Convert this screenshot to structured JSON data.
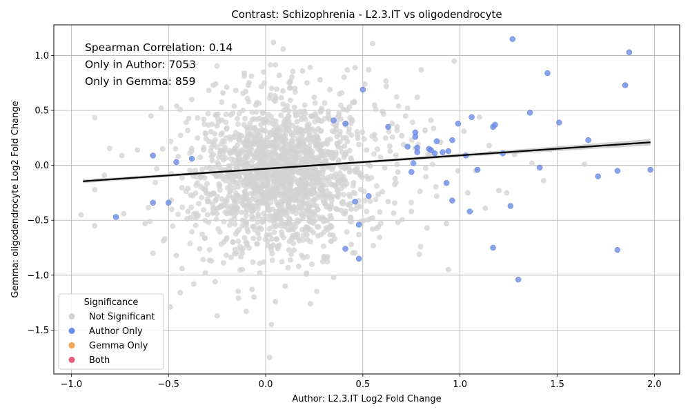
{
  "chart_data": {
    "type": "scatter",
    "title": "Contrast: Schizophrenia - L2.3.IT vs oligodendrocyte",
    "xlabel": "Author: L2.3.IT Log2 Fold Change",
    "ylabel": "Gemma: oligodendrocyte Log2 Fold Change",
    "xlim": [
      -1.09,
      2.13
    ],
    "ylim": [
      -1.9,
      1.28
    ],
    "xticks": [
      -1.0,
      -0.5,
      0.0,
      0.5,
      1.0,
      1.5,
      2.0
    ],
    "xtick_labels": [
      "−1.0",
      "−0.5",
      "0.0",
      "0.5",
      "1.0",
      "1.5",
      "2.0"
    ],
    "yticks": [
      -1.5,
      -1.0,
      -0.5,
      0.0,
      0.5,
      1.0
    ],
    "ytick_labels": [
      "−1.5",
      "−1.0",
      "−0.5",
      "0.0",
      "0.5",
      "1.0"
    ],
    "grid": true,
    "annotations": [
      "Spearman Correlation: 0.14",
      "Only in Author: 7053",
      "Only in Gemma: 859"
    ],
    "legend": {
      "title": "Significance",
      "placement": "bottom-left",
      "entries": [
        {
          "label": "Not Significant",
          "color": "#d3d3d3"
        },
        {
          "label": "Author Only",
          "color": "#6a8ce6"
        },
        {
          "label": "Gemma Only",
          "color": "#f5a455"
        },
        {
          "label": "Both",
          "color": "#e35a7a"
        }
      ]
    },
    "regression": {
      "x": [
        -0.94,
        1.98
      ],
      "y": [
        -0.145,
        0.21
      ],
      "color": "#000000"
    },
    "series": [
      {
        "name": "Not Significant",
        "color": "#d3d3d3",
        "points": [
          [
            -0.95,
            -0.45
          ],
          [
            -0.88,
            -0.55
          ],
          [
            -0.83,
            -0.09
          ],
          [
            -0.74,
            0.09
          ],
          [
            -0.73,
            -0.44
          ],
          [
            -0.66,
            0.14
          ],
          [
            -0.62,
            -0.53
          ],
          [
            -0.59,
            0.45
          ],
          [
            -0.58,
            -0.8
          ],
          [
            -0.53,
            0.15
          ],
          [
            -0.52,
            -0.67
          ],
          [
            -0.49,
            -1.29
          ],
          [
            -0.46,
            -0.82
          ],
          [
            -0.44,
            -1.16
          ],
          [
            -0.43,
            -0.94
          ],
          [
            -0.4,
            -0.42
          ],
          [
            -0.38,
            0.6
          ],
          [
            -0.37,
            -1.08
          ],
          [
            -0.34,
            -0.76
          ],
          [
            -0.31,
            -0.98
          ],
          [
            -0.28,
            -0.87
          ],
          [
            -0.27,
            0.73
          ],
          [
            -0.26,
            -1.06
          ],
          [
            -0.25,
            -1.37
          ],
          [
            -0.22,
            0.66
          ],
          [
            -0.2,
            -0.66
          ],
          [
            -0.18,
            0.46
          ],
          [
            -0.15,
            -0.8
          ],
          [
            -0.14,
            -1.21
          ],
          [
            -0.12,
            -0.95
          ],
          [
            -0.11,
            0.84
          ],
          [
            -0.1,
            -1.33
          ],
          [
            -0.09,
            0.73
          ],
          [
            -0.07,
            -1.13
          ],
          [
            -0.06,
            -1.2
          ],
          [
            -0.05,
            0.55
          ],
          [
            -0.03,
            -0.98
          ],
          [
            -0.01,
            -0.88
          ],
          [
            -0.01,
            0.85
          ],
          [
            0.02,
            -1.75
          ],
          [
            0.03,
            -1.45
          ],
          [
            0.04,
            1.12
          ],
          [
            0.05,
            -1.24
          ],
          [
            0.07,
            0.82
          ],
          [
            0.09,
            1.06
          ],
          [
            0.1,
            -1.1
          ],
          [
            0.12,
            -0.77
          ],
          [
            0.15,
            0.7
          ],
          [
            0.17,
            -0.92
          ],
          [
            0.19,
            0.86
          ],
          [
            0.21,
            -0.98
          ],
          [
            0.23,
            -1.26
          ],
          [
            0.25,
            0.62
          ],
          [
            0.28,
            0.78
          ],
          [
            0.3,
            -0.83
          ],
          [
            0.33,
            0.69
          ],
          [
            0.35,
            -1.02
          ],
          [
            0.38,
            0.65
          ],
          [
            0.4,
            0.51
          ],
          [
            0.42,
            0.87
          ],
          [
            0.44,
            -0.72
          ],
          [
            0.46,
            0.89
          ],
          [
            0.48,
            -0.63
          ],
          [
            0.51,
            0.74
          ],
          [
            0.53,
            0.87
          ],
          [
            0.55,
            1.11
          ],
          [
            0.55,
            -0.48
          ],
          [
            0.56,
            0.55
          ],
          [
            0.58,
            -0.56
          ],
          [
            0.6,
            0.49
          ],
          [
            0.62,
            0.72
          ],
          [
            0.63,
            -0.33
          ],
          [
            0.65,
            0.38
          ],
          [
            0.68,
            -0.52
          ],
          [
            0.7,
            0.27
          ],
          [
            0.72,
            0.45
          ],
          [
            0.75,
            -0.42
          ],
          [
            0.78,
            0.62
          ],
          [
            0.79,
            -0.81
          ],
          [
            0.8,
            0.87
          ],
          [
            0.82,
            0.32
          ],
          [
            0.83,
            -0.57
          ],
          [
            0.85,
            0.41
          ],
          [
            0.88,
            -0.28
          ],
          [
            0.9,
            0.21
          ],
          [
            0.93,
            -0.53
          ],
          [
            0.94,
            -0.95
          ],
          [
            0.97,
            0.95
          ],
          [
            0.99,
            -0.05
          ],
          [
            1.02,
            0.31
          ],
          [
            1.04,
            -0.25
          ],
          [
            1.08,
            -0.05
          ],
          [
            1.1,
            0.44
          ],
          [
            1.13,
            -0.39
          ],
          [
            1.15,
            0.18
          ],
          [
            1.2,
            -0.23
          ],
          [
            1.24,
            -0.25
          ],
          [
            1.28,
            0.1
          ],
          [
            1.37,
            0.02
          ],
          [
            1.43,
            -0.14
          ],
          [
            1.64,
            0.01
          ],
          [
            -0.45,
            0.08
          ],
          [
            -0.4,
            -0.21
          ],
          [
            -0.35,
            0.25
          ],
          [
            -0.3,
            -0.31
          ],
          [
            -0.25,
            0.36
          ],
          [
            -0.2,
            -0.44
          ],
          [
            -0.16,
            0.12
          ],
          [
            -0.12,
            -0.55
          ],
          [
            -0.08,
            0.29
          ],
          [
            -0.04,
            -0.62
          ],
          [
            0.0,
            0.4
          ],
          [
            0.04,
            -0.51
          ],
          [
            0.08,
            0.23
          ],
          [
            0.12,
            -0.37
          ],
          [
            0.16,
            0.18
          ],
          [
            0.2,
            -0.29
          ],
          [
            0.24,
            0.33
          ],
          [
            0.28,
            -0.18
          ],
          [
            0.32,
            0.11
          ],
          [
            0.36,
            -0.08
          ],
          [
            0.4,
            0.25
          ],
          [
            0.44,
            -0.4
          ],
          [
            0.48,
            0.19
          ],
          [
            0.52,
            -0.1
          ],
          [
            0.56,
            0.28
          ],
          [
            0.6,
            -0.24
          ],
          [
            0.64,
            0.13
          ],
          [
            0.68,
            -0.06
          ]
        ]
      },
      {
        "name": "Author Only",
        "color": "#6a8ce6",
        "points": [
          [
            -0.77,
            -0.47
          ],
          [
            -0.58,
            0.09
          ],
          [
            -0.58,
            -0.34
          ],
          [
            -0.5,
            -0.34
          ],
          [
            -0.46,
            0.03
          ],
          [
            -0.38,
            0.06
          ],
          [
            0.35,
            0.41
          ],
          [
            0.41,
            0.38
          ],
          [
            0.41,
            -0.76
          ],
          [
            0.46,
            -0.33
          ],
          [
            0.48,
            -0.54
          ],
          [
            0.48,
            -0.85
          ],
          [
            0.5,
            0.69
          ],
          [
            0.53,
            -0.28
          ],
          [
            0.63,
            0.35
          ],
          [
            0.73,
            0.17
          ],
          [
            0.75,
            -0.06
          ],
          [
            0.76,
            0.02
          ],
          [
            0.77,
            0.3
          ],
          [
            0.77,
            0.26
          ],
          [
            0.78,
            0.16
          ],
          [
            0.78,
            0.12
          ],
          [
            0.84,
            0.15
          ],
          [
            0.85,
            0.14
          ],
          [
            0.87,
            0.11
          ],
          [
            0.88,
            0.22
          ],
          [
            0.91,
            0.12
          ],
          [
            0.93,
            -0.16
          ],
          [
            0.94,
            0.13
          ],
          [
            0.96,
            -0.32
          ],
          [
            0.96,
            0.23
          ],
          [
            0.99,
            0.38
          ],
          [
            1.03,
            0.09
          ],
          [
            1.05,
            -0.42
          ],
          [
            1.06,
            0.44
          ],
          [
            1.09,
            -0.04
          ],
          [
            1.17,
            0.35
          ],
          [
            1.18,
            0.37
          ],
          [
            1.17,
            -0.75
          ],
          [
            1.22,
            0.11
          ],
          [
            1.26,
            -0.37
          ],
          [
            1.27,
            1.15
          ],
          [
            1.3,
            -1.04
          ],
          [
            1.41,
            -0.02
          ],
          [
            1.45,
            0.84
          ],
          [
            1.51,
            0.39
          ],
          [
            1.36,
            0.48
          ],
          [
            1.66,
            0.23
          ],
          [
            1.71,
            -0.1
          ],
          [
            1.81,
            -0.05
          ],
          [
            1.81,
            -0.77
          ],
          [
            1.85,
            0.73
          ],
          [
            1.87,
            1.03
          ],
          [
            1.98,
            -0.04
          ]
        ]
      },
      {
        "name": "Gemma Only",
        "color": "#f5a455",
        "points": []
      },
      {
        "name": "Both",
        "color": "#e35a7a",
        "points": []
      }
    ]
  }
}
